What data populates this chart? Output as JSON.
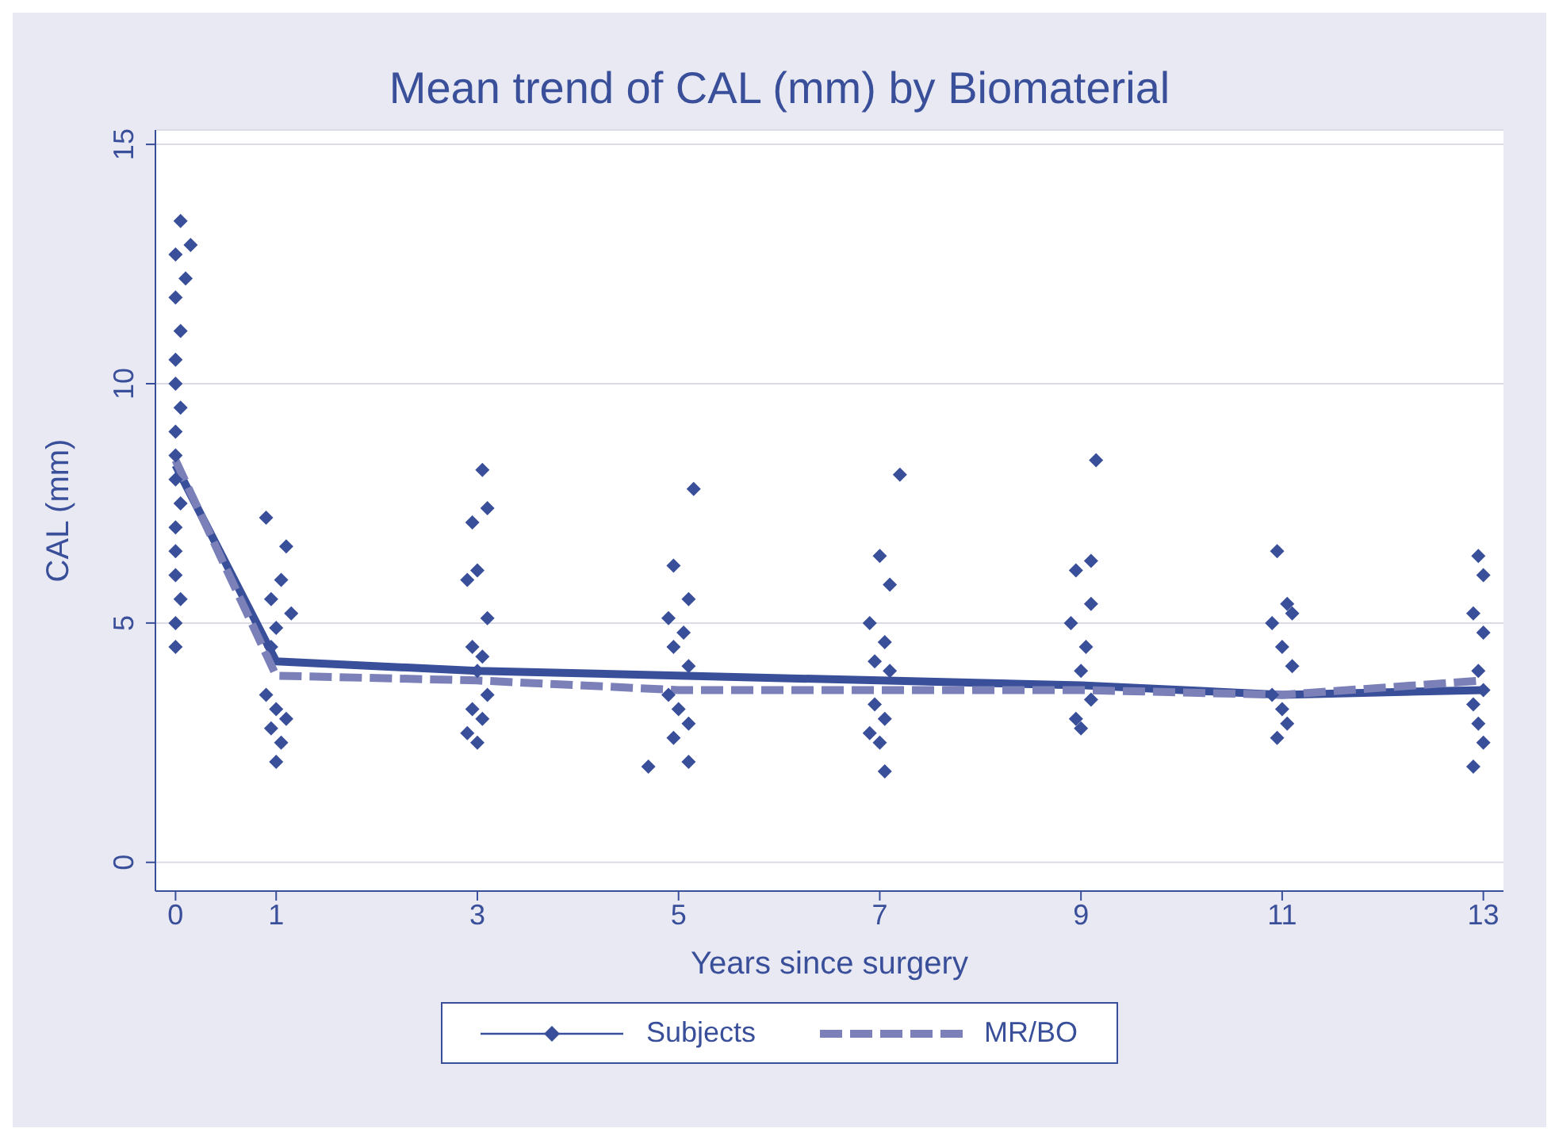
{
  "chart_data": {
    "type": "line",
    "title": "Mean trend of CAL (mm) by Biomaterial",
    "xlabel": "Years since surgery",
    "ylabel": "CAL (mm)",
    "xlim": [
      -0.2,
      13.2
    ],
    "xticks": [
      0,
      1,
      3,
      5,
      7,
      9,
      11,
      13
    ],
    "ylim": [
      -0.6,
      15.3
    ],
    "yticks": [
      0,
      5,
      10,
      15
    ],
    "grid": "y",
    "legend": "bottom",
    "series": [
      {
        "name": "Subjects",
        "type": "scatter",
        "color": "#3a4f9a",
        "marker": "diamond",
        "x": [
          0.05,
          0.15,
          0.0,
          0.1,
          0.0,
          0.05,
          0.0,
          0.0,
          0.05,
          0.0,
          0.0,
          0.0,
          0.05,
          0.0,
          0.0,
          0.0,
          0.05,
          0.0,
          0.0,
          0.9,
          1.1,
          1.05,
          0.95,
          1.15,
          1.0,
          0.95,
          0.9,
          1.0,
          1.1,
          0.95,
          1.05,
          1.0,
          3.05,
          3.1,
          2.95,
          3.0,
          2.9,
          3.1,
          2.95,
          3.05,
          3.0,
          3.1,
          2.95,
          3.05,
          2.9,
          3.0,
          5.15,
          4.95,
          5.1,
          4.9,
          5.05,
          4.95,
          5.1,
          4.9,
          5.0,
          5.1,
          4.95,
          5.1,
          4.7,
          7.2,
          7.0,
          7.1,
          6.9,
          7.05,
          6.95,
          7.1,
          6.95,
          7.05,
          6.9,
          7.0,
          7.05,
          9.15,
          9.1,
          8.95,
          9.1,
          8.9,
          9.05,
          9.0,
          9.1,
          8.95,
          9.0,
          10.95,
          11.05,
          11.1,
          10.9,
          11.0,
          11.1,
          10.9,
          11.0,
          11.05,
          10.95,
          12.95,
          13.0,
          12.9,
          13.0,
          12.95,
          13.0,
          12.9,
          12.95,
          13.0,
          12.9
        ],
        "values": [
          13.4,
          12.9,
          12.7,
          12.2,
          11.8,
          11.1,
          10.5,
          10.0,
          9.5,
          9.0,
          8.5,
          8.0,
          7.5,
          7.0,
          6.5,
          6.0,
          5.5,
          5.0,
          4.5,
          7.2,
          6.6,
          5.9,
          5.5,
          5.2,
          4.9,
          4.5,
          3.5,
          3.2,
          3.0,
          2.8,
          2.5,
          2.1,
          8.2,
          7.4,
          7.1,
          6.1,
          5.9,
          5.1,
          4.5,
          4.3,
          4.0,
          3.5,
          3.2,
          3.0,
          2.7,
          2.5,
          7.8,
          6.2,
          5.5,
          5.1,
          4.8,
          4.5,
          4.1,
          3.5,
          3.2,
          2.9,
          2.6,
          2.1,
          2.0,
          8.1,
          6.4,
          5.8,
          5.0,
          4.6,
          4.2,
          4.0,
          3.3,
          3.0,
          2.7,
          2.5,
          1.9,
          8.4,
          6.3,
          6.1,
          5.4,
          5.0,
          4.5,
          4.0,
          3.4,
          3.0,
          2.8,
          6.5,
          5.4,
          5.2,
          5.0,
          4.5,
          4.1,
          3.5,
          3.2,
          2.9,
          2.6,
          6.4,
          6.0,
          5.2,
          4.8,
          4.0,
          3.6,
          3.3,
          2.9,
          2.5,
          2.0
        ]
      },
      {
        "color": "#3a4f9a",
        "line_style": "solid",
        "x": [
          0,
          1,
          3,
          5,
          7,
          9,
          11,
          13
        ],
        "values": [
          8.3,
          4.2,
          4.0,
          3.9,
          3.8,
          3.7,
          3.5,
          3.6
        ]
      },
      {
        "name": "MR/BO",
        "color": "#7b80b8",
        "line_style": "dashed",
        "x": [
          0,
          1,
          3,
          5,
          7,
          9,
          11,
          13
        ],
        "values": [
          8.4,
          3.9,
          3.8,
          3.6,
          3.6,
          3.6,
          3.5,
          3.8
        ]
      }
    ]
  }
}
